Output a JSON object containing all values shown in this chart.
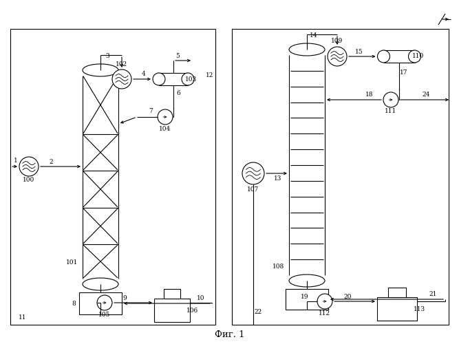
{
  "fig_width": 6.67,
  "fig_height": 5.0,
  "dpi": 100,
  "bg_color": "#ffffff",
  "line_color": "#000000",
  "title": "Фиг. 1"
}
